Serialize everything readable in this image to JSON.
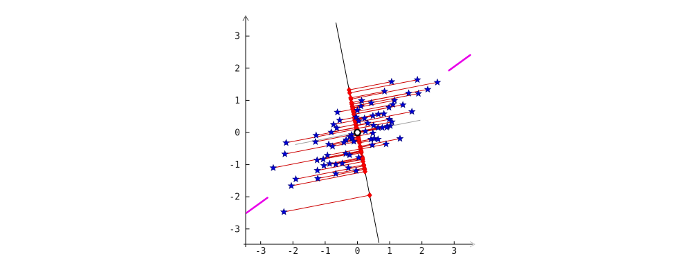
{
  "figure": {
    "background": "#ffffff",
    "title": ""
  },
  "chart_data": {
    "type": "scatter",
    "title": "",
    "xlabel": "",
    "ylabel": "",
    "xlim": [
      -3.5,
      3.6
    ],
    "ylim": [
      -3.55,
      3.65
    ],
    "grid": false,
    "legend": "none",
    "xticks": [
      -3,
      -2,
      -1,
      0,
      1,
      2,
      3
    ],
    "yticks": [
      -3,
      -2,
      -1,
      0,
      1,
      2,
      3
    ],
    "points": [
      [
        1.06,
        1.58
      ],
      [
        1.86,
        1.64
      ],
      [
        2.48,
        1.56
      ],
      [
        2.18,
        1.34
      ],
      [
        1.59,
        1.22
      ],
      [
        1.89,
        1.21
      ],
      [
        0.84,
        1.28
      ],
      [
        1.15,
        1.0
      ],
      [
        1.41,
        0.86
      ],
      [
        1.1,
        0.87
      ],
      [
        0.98,
        0.78
      ],
      [
        1.69,
        0.65
      ],
      [
        0.99,
        0.41
      ],
      [
        1.07,
        0.33
      ],
      [
        1.02,
        0.21
      ],
      [
        0.93,
        0.19
      ],
      [
        1.32,
        -0.19
      ],
      [
        0.13,
        0.99
      ],
      [
        0.43,
        0.92
      ],
      [
        0.11,
        0.82
      ],
      [
        0.0,
        0.69
      ],
      [
        -0.62,
        0.63
      ],
      [
        0.65,
        0.57
      ],
      [
        0.82,
        0.58
      ],
      [
        0.48,
        0.52
      ],
      [
        -0.04,
        0.48
      ],
      [
        0.22,
        0.44
      ],
      [
        -0.55,
        0.38
      ],
      [
        0.04,
        0.36
      ],
      [
        0.32,
        0.29
      ],
      [
        -0.74,
        0.25
      ],
      [
        0.5,
        0.22
      ],
      [
        0.64,
        0.15
      ],
      [
        0.77,
        0.15
      ],
      [
        0.91,
        0.16
      ],
      [
        -0.64,
        0.14
      ],
      [
        -0.81,
        0.01
      ],
      [
        0.25,
        0.04
      ],
      [
        0.48,
        -0.02
      ],
      [
        -0.18,
        -0.07
      ],
      [
        -0.24,
        -0.13
      ],
      [
        -0.17,
        -0.18
      ],
      [
        0.42,
        -0.21
      ],
      [
        0.52,
        -0.19
      ],
      [
        0.64,
        -0.21
      ],
      [
        -0.35,
        -0.23
      ],
      [
        -0.11,
        -0.28
      ],
      [
        -0.42,
        -0.31
      ],
      [
        -0.89,
        -0.37
      ],
      [
        -0.77,
        -0.43
      ],
      [
        0.46,
        -0.39
      ],
      [
        0.89,
        -0.36
      ],
      [
        -0.93,
        -0.71
      ],
      [
        -0.36,
        -0.66
      ],
      [
        -0.24,
        -0.7
      ],
      [
        0.04,
        -0.78
      ],
      [
        -1.06,
        -0.83
      ],
      [
        -0.67,
        -0.99
      ],
      [
        -0.47,
        -0.96
      ],
      [
        -0.86,
        -0.97
      ],
      [
        -0.04,
        -1.19
      ],
      [
        -0.67,
        -1.28
      ],
      [
        -0.28,
        -1.1
      ],
      [
        -1.28,
        -0.09
      ],
      [
        -1.3,
        -0.29
      ],
      [
        -2.21,
        -0.32
      ],
      [
        -2.25,
        -0.67
      ],
      [
        -2.61,
        -1.1
      ],
      [
        -1.25,
        -0.86
      ],
      [
        -1.04,
        -1.03
      ],
      [
        -1.24,
        -1.18
      ],
      [
        -1.91,
        -1.45
      ],
      [
        -1.23,
        -1.43
      ],
      [
        -2.05,
        -1.66
      ],
      [
        -2.28,
        -2.47
      ]
    ],
    "black_line": {
      "slope": -5.13,
      "y_min": -3.43,
      "y_max": 3.42
    },
    "gray_line": {
      "slope": 0.195,
      "x_min": -1.93,
      "x_max": 1.95
    },
    "magenta_segments": [
      {
        "x1": -3.44,
        "y1": -2.5,
        "x2": -2.79,
        "y2": -2.03
      },
      {
        "x1": 2.84,
        "y1": 1.93,
        "x2": 3.5,
        "y2": 2.41
      }
    ],
    "projection": "orthogonal-onto-black-line",
    "origin_marker": {
      "x": 0,
      "y": 0
    },
    "colors": {
      "axis": "#000000",
      "tick_label": "#1a1a1a",
      "point": "#0000d8",
      "point_edge": "#00007a",
      "projection_line": "#cc0000",
      "projection_marker": "#ff0000",
      "projection_marker_edge": "#d40000",
      "black_line": "#000000",
      "gray_line": "#a0a0a0",
      "magenta": "#e800e8",
      "origin_fill": "#ffffff",
      "origin_edge": "#000000"
    }
  }
}
